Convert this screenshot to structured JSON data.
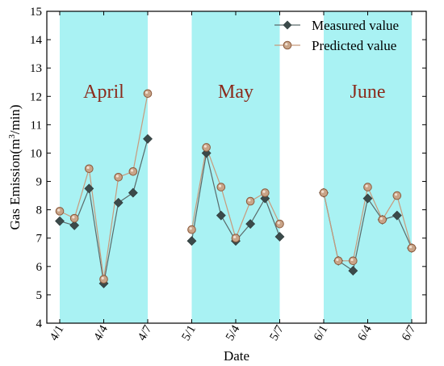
{
  "chart_data": {
    "type": "line",
    "xlabel": "Date",
    "ylabel_prefix": "Gas Emission(m",
    "ylabel_sup": "3",
    "ylabel_suffix": "/min)",
    "ylim": [
      4,
      15
    ],
    "yticks": [
      4,
      5,
      6,
      7,
      8,
      9,
      10,
      11,
      12,
      13,
      14,
      15
    ],
    "xlim": [
      0,
      25
    ],
    "xticks": [
      {
        "x": 0,
        "label": "4/1"
      },
      {
        "x": 3,
        "label": "4/4"
      },
      {
        "x": 6,
        "label": "4/7"
      },
      {
        "x": 9,
        "label": "5/1"
      },
      {
        "x": 12,
        "label": "5/4"
      },
      {
        "x": 15,
        "label": "5/7"
      },
      {
        "x": 18,
        "label": "6/1"
      },
      {
        "x": 21,
        "label": "6/4"
      },
      {
        "x": 24,
        "label": "6/7"
      }
    ],
    "bands": [
      {
        "label": "April",
        "start": 0,
        "end": 6,
        "label_y": 11.95
      },
      {
        "label": "May",
        "start": 9,
        "end": 15,
        "label_y": 11.95
      },
      {
        "label": "June",
        "start": 18,
        "end": 24,
        "label_y": 11.95
      }
    ],
    "grid": false,
    "legend_position": "top-right",
    "series": [
      {
        "name": "Measured value",
        "marker": "diamond",
        "color": "#3b4a4a",
        "segments": [
          {
            "x": [
              0,
              1,
              2,
              3,
              4,
              5,
              6
            ],
            "y": [
              7.6,
              7.45,
              8.75,
              5.4,
              8.25,
              8.6,
              10.5
            ]
          },
          {
            "x": [
              9,
              10,
              11,
              12,
              13,
              14,
              15
            ],
            "y": [
              6.9,
              10.0,
              7.8,
              6.9,
              7.5,
              8.4,
              7.05
            ]
          },
          {
            "x": [
              18,
              19,
              20,
              21,
              22,
              23,
              24
            ],
            "y": [
              8.6,
              6.2,
              5.85,
              8.4,
              7.65,
              7.8,
              6.65
            ]
          }
        ]
      },
      {
        "name": "Predicted value",
        "marker": "circle",
        "color": "#c8a488",
        "segments": [
          {
            "x": [
              0,
              1,
              2,
              3,
              4,
              5,
              6
            ],
            "y": [
              7.95,
              7.7,
              9.45,
              5.55,
              9.15,
              9.35,
              12.1
            ]
          },
          {
            "x": [
              9,
              10,
              11,
              12,
              13,
              14,
              15
            ],
            "y": [
              7.3,
              10.2,
              8.8,
              7.0,
              8.3,
              8.6,
              7.5
            ]
          },
          {
            "x": [
              18,
              19,
              20,
              21,
              22,
              23,
              24
            ],
            "y": [
              8.6,
              6.2,
              6.2,
              8.8,
              7.65,
              8.5,
              6.65
            ]
          }
        ]
      }
    ]
  }
}
